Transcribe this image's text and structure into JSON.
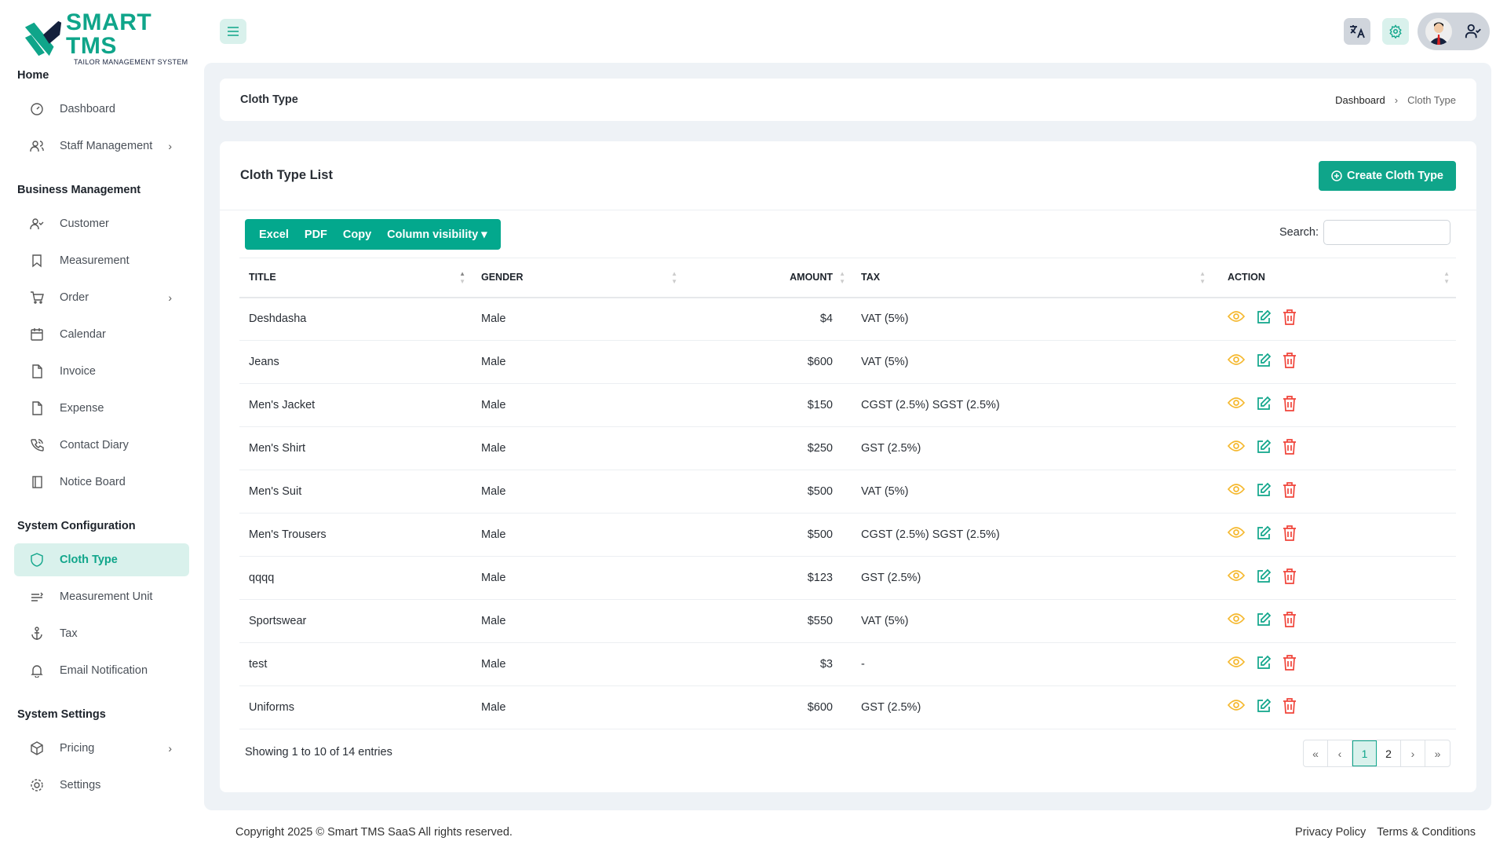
{
  "brand": {
    "name": "SMART TMS",
    "tagline": "TAILOR MANAGEMENT SYSTEM",
    "accent": "#0fa58a"
  },
  "sidebar": {
    "sections": [
      {
        "title": "Home",
        "items": [
          {
            "label": "Dashboard",
            "icon": "dashboard-icon"
          },
          {
            "label": "Staff Management",
            "icon": "users-icon",
            "chevron": true
          }
        ]
      },
      {
        "title": "Business Management",
        "items": [
          {
            "label": "Customer",
            "icon": "user-check-icon"
          },
          {
            "label": "Measurement",
            "icon": "bookmark-icon"
          },
          {
            "label": "Order",
            "icon": "cart-icon",
            "chevron": true
          },
          {
            "label": "Calendar",
            "icon": "calendar-icon"
          },
          {
            "label": "Invoice",
            "icon": "file-icon"
          },
          {
            "label": "Expense",
            "icon": "file-icon"
          },
          {
            "label": "Contact Diary",
            "icon": "phone-icon"
          },
          {
            "label": "Notice Board",
            "icon": "book-icon"
          }
        ]
      },
      {
        "title": "System Configuration",
        "items": [
          {
            "label": "Cloth Type",
            "icon": "shield-icon",
            "active": true
          },
          {
            "label": "Measurement Unit",
            "icon": "ruler-icon"
          },
          {
            "label": "Tax",
            "icon": "anchor-icon"
          },
          {
            "label": "Email Notification",
            "icon": "bell-icon"
          }
        ]
      },
      {
        "title": "System Settings",
        "items": [
          {
            "label": "Pricing",
            "icon": "package-icon",
            "chevron": true
          },
          {
            "label": "Settings",
            "icon": "gear-icon"
          }
        ]
      }
    ]
  },
  "page": {
    "title": "Cloth Type",
    "breadcrumb": [
      "Dashboard",
      "Cloth Type"
    ]
  },
  "list": {
    "title": "Cloth Type List",
    "create_label": "Create Cloth Type",
    "export_buttons": [
      "Excel",
      "PDF",
      "Copy",
      "Column visibility"
    ],
    "search_label": "Search:",
    "search_value": "",
    "columns": [
      "TITLE",
      "GENDER",
      "AMOUNT",
      "TAX",
      "ACTION"
    ],
    "rows": [
      [
        "Deshdasha",
        "Male",
        "$4",
        "VAT (5%)"
      ],
      [
        "Jeans",
        "Male",
        "$600",
        "VAT (5%)"
      ],
      [
        "Men's Jacket",
        "Male",
        "$150",
        "CGST (2.5%) SGST (2.5%)"
      ],
      [
        "Men's Shirt",
        "Male",
        "$250",
        "GST (2.5%)"
      ],
      [
        "Men's Suit",
        "Male",
        "$500",
        "VAT (5%)"
      ],
      [
        "Men's Trousers",
        "Male",
        "$500",
        "CGST (2.5%) SGST (2.5%)"
      ],
      [
        "qqqq",
        "Male",
        "$123",
        "GST (2.5%)"
      ],
      [
        "Sportswear",
        "Male",
        "$550",
        "VAT (5%)"
      ],
      [
        "test",
        "Male",
        "$3",
        "-"
      ],
      [
        "Uniforms",
        "Male",
        "$600",
        "GST (2.5%)"
      ]
    ],
    "info": "Showing 1 to 10 of 14 entries",
    "pagination": {
      "first": "«",
      "prev": "‹",
      "pages": [
        "1",
        "2"
      ],
      "current": "1",
      "next": "›",
      "last": "»"
    }
  },
  "footer": {
    "copyright": "Copyright 2025 © Smart TMS SaaS All rights reserved.",
    "links": [
      "Privacy Policy",
      "Terms & Conditions"
    ]
  }
}
